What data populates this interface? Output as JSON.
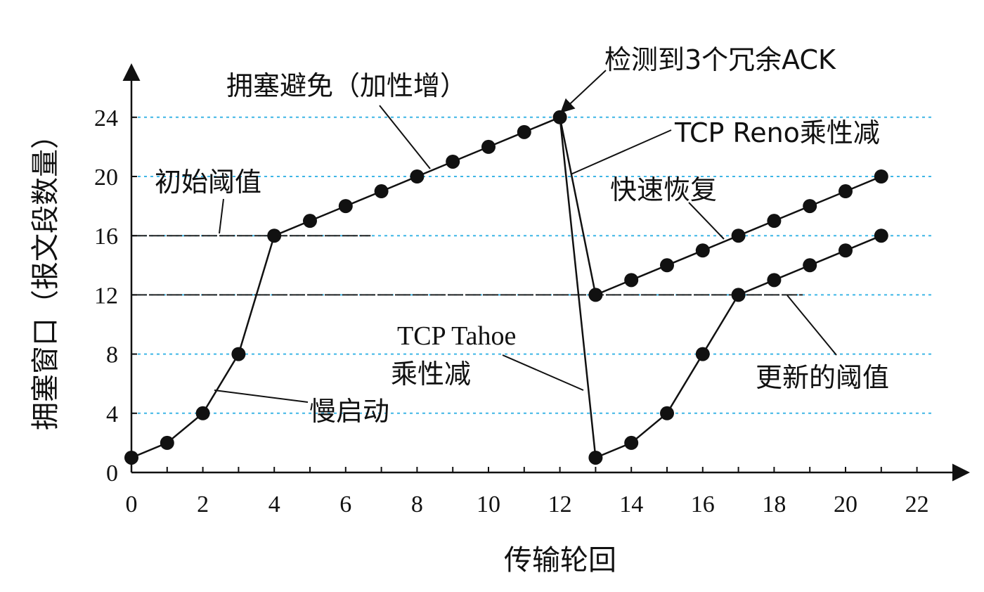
{
  "chart_data": {
    "type": "line",
    "xlabel": "传输轮回",
    "ylabel": "拥塞窗口（报文段数量）",
    "xlim": [
      0,
      22
    ],
    "ylim": [
      0,
      24
    ],
    "x_ticks": [
      0,
      2,
      4,
      6,
      8,
      10,
      12,
      14,
      16,
      18,
      20,
      22
    ],
    "y_ticks": [
      0,
      4,
      8,
      12,
      16,
      20,
      24
    ],
    "grid": "horizontal dashed at y ticks",
    "series": [
      {
        "color": "#111111",
        "points": [
          [
            0,
            1
          ],
          [
            1,
            2
          ],
          [
            2,
            4
          ],
          [
            3,
            8
          ],
          [
            4,
            16
          ],
          [
            5,
            17
          ],
          [
            6,
            18
          ],
          [
            7,
            19
          ],
          [
            8,
            20
          ],
          [
            9,
            21
          ],
          [
            10,
            22
          ],
          [
            11,
            23
          ],
          [
            12,
            24
          ]
        ]
      },
      {
        "color": "#111111",
        "points": [
          [
            12,
            24
          ],
          [
            13,
            12
          ],
          [
            14,
            13
          ],
          [
            15,
            14
          ],
          [
            16,
            15
          ],
          [
            17,
            16
          ],
          [
            18,
            17
          ],
          [
            19,
            18
          ],
          [
            20,
            19
          ],
          [
            21,
            20
          ]
        ]
      },
      {
        "color": "#111111",
        "points": [
          [
            12,
            24
          ],
          [
            13,
            1
          ],
          [
            14,
            2
          ],
          [
            15,
            4
          ],
          [
            16,
            8
          ],
          [
            17,
            12
          ],
          [
            18,
            13
          ],
          [
            19,
            14
          ],
          [
            20,
            15
          ],
          [
            21,
            16
          ]
        ]
      }
    ],
    "reference_lines": [
      {
        "y": 16,
        "x_range": [
          0,
          6.7
        ]
      },
      {
        "y": 12,
        "x_range": [
          0,
          18.8
        ]
      }
    ],
    "annotations": {
      "congestion_avoidance": "拥塞避免（加性增）",
      "triple_ack": "检测到3个冗余ACK",
      "reno_md": "TCP Reno乘性减",
      "initial_threshold": "初始阈值",
      "fast_recovery": "快速恢复",
      "tahoe_line1": "TCP Tahoe",
      "tahoe_line2": "乘性减",
      "slow_start": "慢启动",
      "updated_threshold": "更新的阈值"
    },
    "colors": {
      "gridline": "#3fb6e6",
      "line": "#111111",
      "marker": "#111111"
    }
  }
}
